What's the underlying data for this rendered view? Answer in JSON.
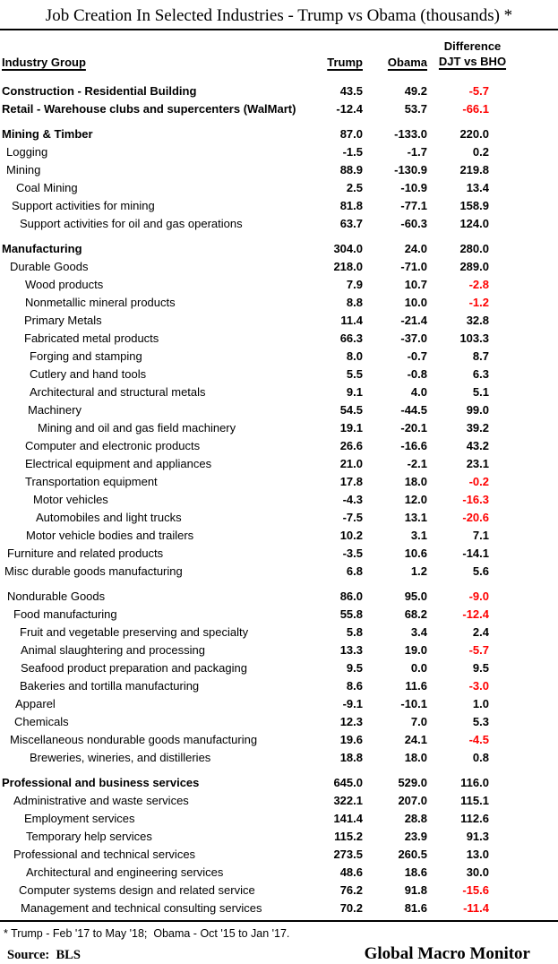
{
  "colors": {
    "negative": "#FF0000",
    "text": "#000000"
  },
  "footnote": "* Trump - Feb '17 to May '18;  Obama - Oct '15 to Jan '17.",
  "source_label": "Source:  BLS",
  "brand": "Global Macro Monitor",
  "chart_data": {
    "type": "table",
    "title": "Job Creation In Selected Industries - Trump vs Obama (thousands) *",
    "columns": [
      "Industry Group",
      "Trump",
      "Obama",
      "Difference DJT vs BHO"
    ],
    "header": {
      "industry_group": "Industry Group",
      "trump": "Trump",
      "obama": "Obama",
      "difference_line1": "Difference",
      "difference_line2": "DJT vs BHO"
    },
    "rows": [
      {
        "label": "Construction - Residential Building",
        "indent": 2,
        "bold": true,
        "gap": false,
        "trump": "43.5",
        "obama": "49.2",
        "diff": "-5.7",
        "diff_red": true
      },
      {
        "label": "Retail - Warehouse clubs and supercenters (WalMart)",
        "indent": 2,
        "bold": true,
        "gap": false,
        "trump": "-12.4",
        "obama": "53.7",
        "diff": "-66.1",
        "diff_red": true
      },
      {
        "label": "Mining & Timber",
        "indent": 2,
        "bold": true,
        "gap": true,
        "trump": "87.0",
        "obama": "-133.0",
        "diff": "220.0",
        "diff_red": false
      },
      {
        "label": "Logging",
        "indent": 7,
        "bold": false,
        "gap": false,
        "trump": "-1.5",
        "obama": "-1.7",
        "diff": "0.2",
        "diff_red": false
      },
      {
        "label": "Mining",
        "indent": 7,
        "bold": false,
        "gap": false,
        "trump": "88.9",
        "obama": "-130.9",
        "diff": "219.8",
        "diff_red": false
      },
      {
        "label": "Coal Mining",
        "indent": 18,
        "bold": false,
        "gap": false,
        "trump": "2.5",
        "obama": "-10.9",
        "diff": "13.4",
        "diff_red": false
      },
      {
        "label": "Support activities for mining",
        "indent": 13,
        "bold": false,
        "gap": false,
        "trump": "81.8",
        "obama": "-77.1",
        "diff": "158.9",
        "diff_red": false
      },
      {
        "label": "Support activities for oil and gas operations",
        "indent": 22,
        "bold": false,
        "gap": false,
        "trump": "63.7",
        "obama": "-60.3",
        "diff": "124.0",
        "diff_red": false
      },
      {
        "label": "Manufacturing",
        "indent": 2,
        "bold": true,
        "gap": true,
        "trump": "304.0",
        "obama": "24.0",
        "diff": "280.0",
        "diff_red": false
      },
      {
        "label": "Durable Goods",
        "indent": 11,
        "bold": false,
        "gap": false,
        "trump": "218.0",
        "obama": "-71.0",
        "diff": "289.0",
        "diff_red": false
      },
      {
        "label": "Wood products",
        "indent": 28,
        "bold": false,
        "gap": false,
        "trump": "7.9",
        "obama": "10.7",
        "diff": "-2.8",
        "diff_red": true
      },
      {
        "label": "Nonmetallic mineral products",
        "indent": 28,
        "bold": false,
        "gap": false,
        "trump": "8.8",
        "obama": "10.0",
        "diff": "-1.2",
        "diff_red": true
      },
      {
        "label": "Primary Metals",
        "indent": 27,
        "bold": false,
        "gap": false,
        "trump": "11.4",
        "obama": "-21.4",
        "diff": "32.8",
        "diff_red": false
      },
      {
        "label": "Fabricated metal products",
        "indent": 27,
        "bold": false,
        "gap": false,
        "trump": "66.3",
        "obama": "-37.0",
        "diff": "103.3",
        "diff_red": false
      },
      {
        "label": "Forging and stamping",
        "indent": 33,
        "bold": false,
        "gap": false,
        "trump": "8.0",
        "obama": "-0.7",
        "diff": "8.7",
        "diff_red": false
      },
      {
        "label": "Cutlery and hand tools",
        "indent": 33,
        "bold": false,
        "gap": false,
        "trump": "5.5",
        "obama": "-0.8",
        "diff": "6.3",
        "diff_red": false
      },
      {
        "label": "Architectural and structural metals",
        "indent": 33,
        "bold": false,
        "gap": false,
        "trump": "9.1",
        "obama": "4.0",
        "diff": "5.1",
        "diff_red": false
      },
      {
        "label": "Machinery",
        "indent": 31,
        "bold": false,
        "gap": false,
        "trump": "54.5",
        "obama": "-44.5",
        "diff": "99.0",
        "diff_red": false
      },
      {
        "label": "Mining and oil and gas field machinery",
        "indent": 42,
        "bold": false,
        "gap": false,
        "trump": "19.1",
        "obama": "-20.1",
        "diff": "39.2",
        "diff_red": false
      },
      {
        "label": "Computer and electronic products",
        "indent": 28,
        "bold": false,
        "gap": false,
        "trump": "26.6",
        "obama": "-16.6",
        "diff": "43.2",
        "diff_red": false
      },
      {
        "label": "Electrical equipment and appliances",
        "indent": 28,
        "bold": false,
        "gap": false,
        "trump": "21.0",
        "obama": "-2.1",
        "diff": "23.1",
        "diff_red": false
      },
      {
        "label": "Transportation equipment",
        "indent": 28,
        "bold": false,
        "gap": false,
        "trump": "17.8",
        "obama": "18.0",
        "diff": "-0.2",
        "diff_red": true
      },
      {
        "label": "Motor vehicles",
        "indent": 37,
        "bold": false,
        "gap": false,
        "trump": "-4.3",
        "obama": "12.0",
        "diff": "-16.3",
        "diff_red": true
      },
      {
        "label": "Automobiles and light trucks",
        "indent": 40,
        "bold": false,
        "gap": false,
        "trump": "-7.5",
        "obama": "13.1",
        "diff": "-20.6",
        "diff_red": true
      },
      {
        "label": "Motor vehicle bodies and trailers",
        "indent": 29,
        "bold": false,
        "gap": false,
        "trump": "10.2",
        "obama": "3.1",
        "diff": "7.1",
        "diff_red": false
      },
      {
        "label": "Furniture and related products",
        "indent": 8,
        "bold": false,
        "gap": false,
        "trump": "-3.5",
        "obama": "10.6",
        "diff": "-14.1",
        "diff_red": false
      },
      {
        "label": "Misc durable goods manufacturing",
        "indent": 5,
        "bold": false,
        "gap": false,
        "trump": "6.8",
        "obama": "1.2",
        "diff": "5.6",
        "diff_red": false
      },
      {
        "label": "Nondurable Goods",
        "indent": 8,
        "bold": false,
        "gap": true,
        "trump": "86.0",
        "obama": "95.0",
        "diff": "-9.0",
        "diff_red": true
      },
      {
        "label": "Food manufacturing",
        "indent": 15,
        "bold": false,
        "gap": false,
        "trump": "55.8",
        "obama": "68.2",
        "diff": "-12.4",
        "diff_red": true
      },
      {
        "label": "Fruit and vegetable preserving and specialty",
        "indent": 22,
        "bold": false,
        "gap": false,
        "trump": "5.8",
        "obama": "3.4",
        "diff": "2.4",
        "diff_red": false
      },
      {
        "label": "Animal slaughtering and processing",
        "indent": 23,
        "bold": false,
        "gap": false,
        "trump": "13.3",
        "obama": "19.0",
        "diff": "-5.7",
        "diff_red": true
      },
      {
        "label": "Seafood product preparation and packaging",
        "indent": 23,
        "bold": false,
        "gap": false,
        "trump": "9.5",
        "obama": "0.0",
        "diff": "9.5",
        "diff_red": false
      },
      {
        "label": "Bakeries and tortilla manufacturing",
        "indent": 22,
        "bold": false,
        "gap": false,
        "trump": "8.6",
        "obama": "11.6",
        "diff": "-3.0",
        "diff_red": true
      },
      {
        "label": "Apparel",
        "indent": 17,
        "bold": false,
        "gap": false,
        "trump": "-9.1",
        "obama": "-10.1",
        "diff": "1.0",
        "diff_red": false
      },
      {
        "label": "Chemicals",
        "indent": 16,
        "bold": false,
        "gap": false,
        "trump": "12.3",
        "obama": "7.0",
        "diff": "5.3",
        "diff_red": false
      },
      {
        "label": "Miscellaneous nondurable goods manufacturing",
        "indent": 11,
        "bold": false,
        "gap": false,
        "trump": "19.6",
        "obama": "24.1",
        "diff": "-4.5",
        "diff_red": true
      },
      {
        "label": "Breweries, wineries, and distilleries",
        "indent": 33,
        "bold": false,
        "gap": false,
        "trump": "18.8",
        "obama": "18.0",
        "diff": "0.8",
        "diff_red": false
      },
      {
        "label": "Professional and business services",
        "indent": 2,
        "bold": true,
        "gap": true,
        "trump": "645.0",
        "obama": "529.0",
        "diff": "116.0",
        "diff_red": false
      },
      {
        "label": "Administrative and waste services",
        "indent": 15,
        "bold": false,
        "gap": false,
        "trump": "322.1",
        "obama": "207.0",
        "diff": "115.1",
        "diff_red": false
      },
      {
        "label": "Employment services",
        "indent": 27,
        "bold": false,
        "gap": false,
        "trump": "141.4",
        "obama": "28.8",
        "diff": "112.6",
        "diff_red": false
      },
      {
        "label": "Temporary help services",
        "indent": 29,
        "bold": false,
        "gap": false,
        "trump": "115.2",
        "obama": "23.9",
        "diff": "91.3",
        "diff_red": false
      },
      {
        "label": "Professional and technical services",
        "indent": 15,
        "bold": false,
        "gap": false,
        "trump": "273.5",
        "obama": "260.5",
        "diff": "13.0",
        "diff_red": false
      },
      {
        "label": "Architectural and engineering services",
        "indent": 29,
        "bold": false,
        "gap": false,
        "trump": "48.6",
        "obama": "18.6",
        "diff": "30.0",
        "diff_red": false
      },
      {
        "label": "Computer systems design and related service",
        "indent": 21,
        "bold": false,
        "gap": false,
        "trump": "76.2",
        "obama": "91.8",
        "diff": "-15.6",
        "diff_red": true
      },
      {
        "label": "Management and technical consulting services",
        "indent": 23,
        "bold": false,
        "gap": false,
        "trump": "70.2",
        "obama": "81.6",
        "diff": "-11.4",
        "diff_red": true
      }
    ]
  }
}
